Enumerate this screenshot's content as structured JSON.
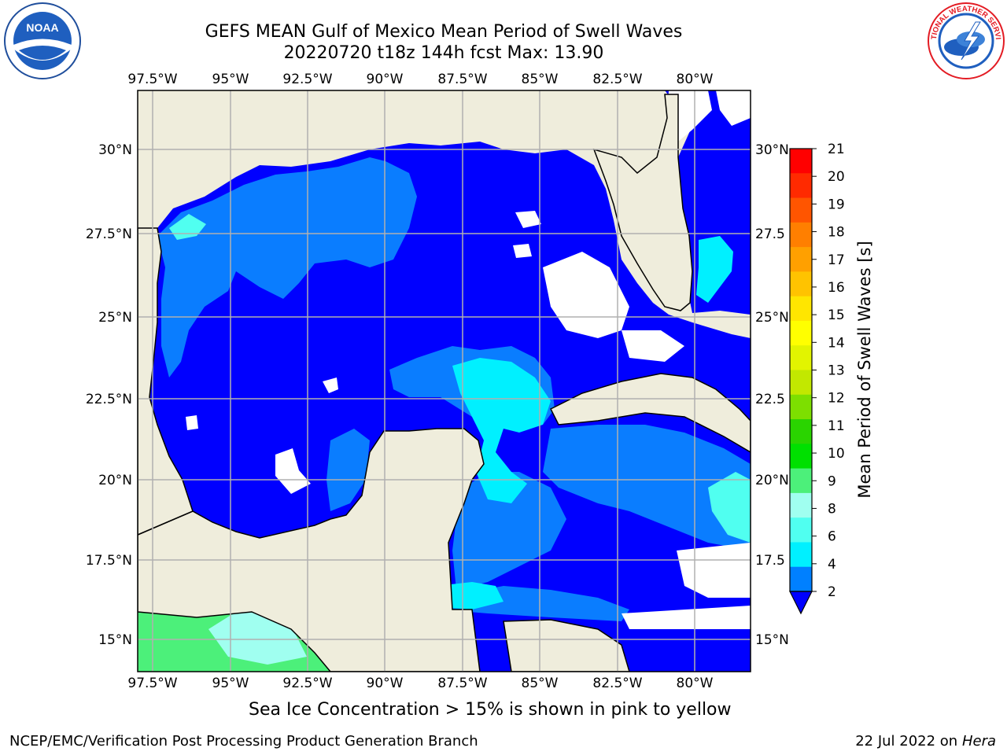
{
  "title_line1": "GEFS MEAN Gulf of Mexico Mean Period of Swell Waves",
  "title_line2": "20220720 t18z 144h fcst   Max: 13.90",
  "lon_labels": [
    "97.5°W",
    "95°W",
    "92.5°W",
    "90°W",
    "87.5°W",
    "85°W",
    "82.5°W",
    "80°W"
  ],
  "lat_labels_left": [
    "30°N",
    "27.5°N",
    "25°N",
    "22.5°N",
    "20°N",
    "17.5°N",
    "15°N"
  ],
  "lat_labels_right": [
    "30°N",
    "27.5",
    "25°N",
    "22.5",
    "20°N",
    "17.5",
    "15°N"
  ],
  "colorbar": {
    "label": "Mean Period of Swell Waves [s]",
    "ticks": [
      "21",
      "20",
      "19",
      "18",
      "17",
      "16",
      "15",
      "14",
      "13",
      "12",
      "11",
      "10",
      "9",
      "8",
      "6",
      "4",
      "2"
    ],
    "colors": [
      "#ff0000",
      "#ff2a00",
      "#ff5500",
      "#ff7f00",
      "#ffa000",
      "#ffc300",
      "#ffe600",
      "#ffff00",
      "#e2f400",
      "#c2e800",
      "#7ddf00",
      "#2ad400",
      "#00e000",
      "#4cf07a",
      "#a0fff0",
      "#50fff0",
      "#00f0ff",
      "#0080ff"
    ],
    "extend_color": "#0000ff"
  },
  "colors": {
    "land": "#efeddc",
    "low_swell": "#0000ff",
    "mid_swell": "#0a7dff",
    "swell_cyan": "#00f0ff",
    "swell_green": "#4cf07a",
    "grid": "#b0b0b0"
  },
  "bottom_note": "Sea Ice Concentration > 15% is shown in pink to yellow",
  "footer_left": "NCEP/EMC/Verification Post Processing Product Generation Branch",
  "footer_date": "22 Jul 2022 on ",
  "footer_host": "Hera",
  "logo_left_text": "NOAA",
  "logo_right_text": "NATIONAL WEATHER SERVICE"
}
